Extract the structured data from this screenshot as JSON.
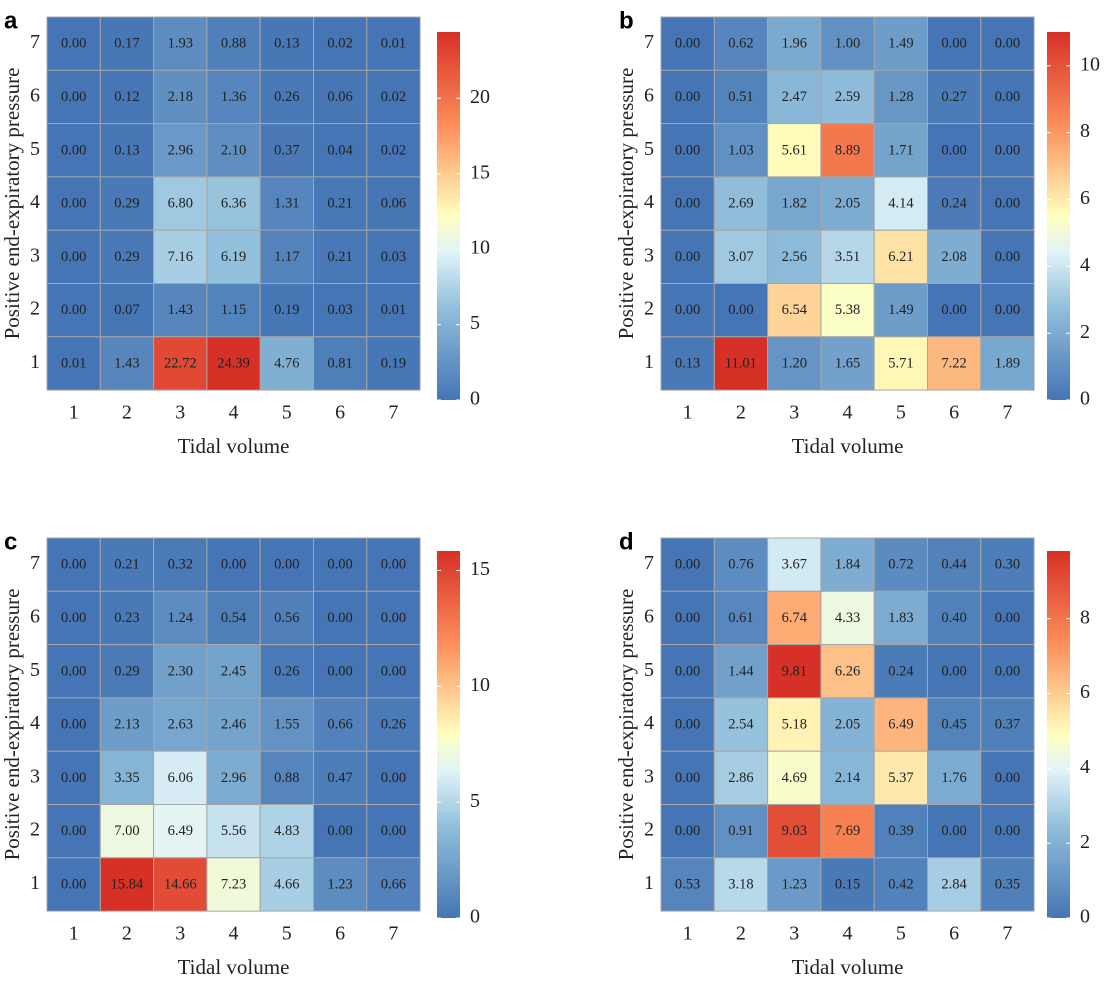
{
  "chart_data": [
    {
      "type": "heatmap",
      "panel": "a",
      "xlabel": "Tidal volume",
      "ylabel": "Positive end-expiratory pressure",
      "x_categories": [
        "1",
        "2",
        "3",
        "4",
        "5",
        "6",
        "7"
      ],
      "y_categories": [
        "1",
        "2",
        "3",
        "4",
        "5",
        "6",
        "7"
      ],
      "values": [
        [
          "0.00",
          "0.17",
          "1.93",
          "0.88",
          "0.13",
          "0.02",
          "0.01"
        ],
        [
          "0.00",
          "0.12",
          "2.18",
          "1.36",
          "0.26",
          "0.06",
          "0.02"
        ],
        [
          "0.00",
          "0.13",
          "2.96",
          "2.10",
          "0.37",
          "0.04",
          "0.02"
        ],
        [
          "0.00",
          "0.29",
          "6.80",
          "6.36",
          "1.31",
          "0.21",
          "0.06"
        ],
        [
          "0.00",
          "0.29",
          "7.16",
          "6.19",
          "1.17",
          "0.21",
          "0.03"
        ],
        [
          "0.00",
          "0.07",
          "1.43",
          "1.15",
          "0.19",
          "0.03",
          "0.01"
        ],
        [
          "0.01",
          "1.43",
          "22.72",
          "24.39",
          "4.76",
          "0.81",
          "0.19"
        ]
      ],
      "colorbar": {
        "min": 0,
        "max": 24.39,
        "ticks": [
          0,
          5,
          10,
          15,
          20
        ]
      }
    },
    {
      "type": "heatmap",
      "panel": "b",
      "xlabel": "Tidal volume",
      "ylabel": "Positive end-expiratory pressure",
      "x_categories": [
        "1",
        "2",
        "3",
        "4",
        "5",
        "6",
        "7"
      ],
      "y_categories": [
        "1",
        "2",
        "3",
        "4",
        "5",
        "6",
        "7"
      ],
      "values": [
        [
          "0.00",
          "0.62",
          "1.96",
          "1.00",
          "1.49",
          "0.00",
          "0.00"
        ],
        [
          "0.00",
          "0.51",
          "2.47",
          "2.59",
          "1.28",
          "0.27",
          "0.00"
        ],
        [
          "0.00",
          "1.03",
          "5.61",
          "8.89",
          "1.71",
          "0.00",
          "0.00"
        ],
        [
          "0.00",
          "2.69",
          "1.82",
          "2.05",
          "4.14",
          "0.24",
          "0.00"
        ],
        [
          "0.00",
          "3.07",
          "2.56",
          "3.51",
          "6.21",
          "2.08",
          "0.00"
        ],
        [
          "0.00",
          "0.00",
          "6.54",
          "5.38",
          "1.49",
          "0.00",
          "0.00"
        ],
        [
          "0.13",
          "11.01",
          "1.20",
          "1.65",
          "5.71",
          "7.22",
          "1.89"
        ]
      ],
      "colorbar": {
        "min": 0,
        "max": 11.01,
        "ticks": [
          0,
          2,
          4,
          6,
          8,
          10
        ]
      }
    },
    {
      "type": "heatmap",
      "panel": "c",
      "xlabel": "Tidal volume",
      "ylabel": "Positive end-expiratory pressure",
      "x_categories": [
        "1",
        "2",
        "3",
        "4",
        "5",
        "6",
        "7"
      ],
      "y_categories": [
        "1",
        "2",
        "3",
        "4",
        "5",
        "6",
        "7"
      ],
      "values": [
        [
          "0.00",
          "0.21",
          "0.32",
          "0.00",
          "0.00",
          "0.00",
          "0.00"
        ],
        [
          "0.00",
          "0.23",
          "1.24",
          "0.54",
          "0.56",
          "0.00",
          "0.00"
        ],
        [
          "0.00",
          "0.29",
          "2.30",
          "2.45",
          "0.26",
          "0.00",
          "0.00"
        ],
        [
          "0.00",
          "2.13",
          "2.63",
          "2.46",
          "1.55",
          "0.66",
          "0.26"
        ],
        [
          "0.00",
          "3.35",
          "6.06",
          "2.96",
          "0.88",
          "0.47",
          "0.00"
        ],
        [
          "0.00",
          "7.00",
          "6.49",
          "5.56",
          "4.83",
          "0.00",
          "0.00"
        ],
        [
          "0.00",
          "15.84",
          "14.66",
          "7.23",
          "4.66",
          "1.23",
          "0.66"
        ]
      ],
      "colorbar": {
        "min": 0,
        "max": 15.84,
        "ticks": [
          0,
          5,
          10,
          15
        ]
      }
    },
    {
      "type": "heatmap",
      "panel": "d",
      "xlabel": "Tidal volume",
      "ylabel": "Positive end-expiratory pressure",
      "x_categories": [
        "1",
        "2",
        "3",
        "4",
        "5",
        "6",
        "7"
      ],
      "y_categories": [
        "1",
        "2",
        "3",
        "4",
        "5",
        "6",
        "7"
      ],
      "values": [
        [
          "0.00",
          "0.76",
          "3.67",
          "1.84",
          "0.72",
          "0.44",
          "0.30"
        ],
        [
          "0.00",
          "0.61",
          "6.74",
          "4.33",
          "1.83",
          "0.40",
          "0.00"
        ],
        [
          "0.00",
          "1.44",
          "9.81",
          "6.26",
          "0.24",
          "0.00",
          "0.00"
        ],
        [
          "0.00",
          "2.54",
          "5.18",
          "2.05",
          "6.49",
          "0.45",
          "0.37"
        ],
        [
          "0.00",
          "2.86",
          "4.69",
          "2.14",
          "5.37",
          "1.76",
          "0.00"
        ],
        [
          "0.00",
          "0.91",
          "9.03",
          "7.69",
          "0.39",
          "0.00",
          "0.00"
        ],
        [
          "0.53",
          "3.18",
          "1.23",
          "0.15",
          "0.42",
          "2.84",
          "0.35"
        ]
      ],
      "colorbar": {
        "min": 0,
        "max": 9.81,
        "ticks": [
          0,
          2,
          4,
          6,
          8
        ]
      }
    }
  ]
}
